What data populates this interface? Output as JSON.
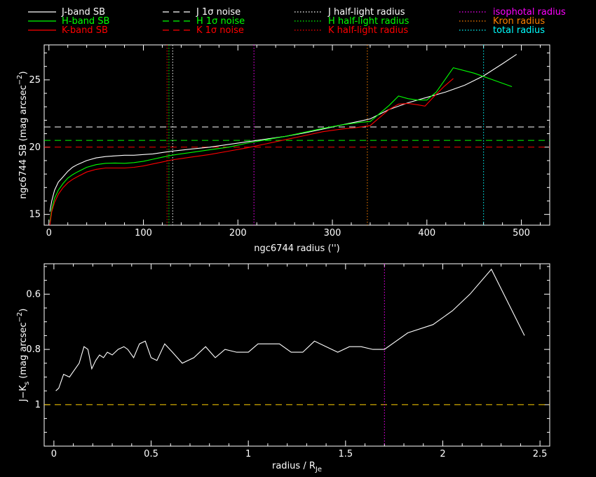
{
  "legend": [
    {
      "label": "J-band SB",
      "color": "#ffffff",
      "dash": "solid"
    },
    {
      "label": "H-band SB",
      "color": "#00ff00",
      "dash": "solid"
    },
    {
      "label": "K-band SB",
      "color": "#ff0000",
      "dash": "solid"
    },
    {
      "label": "J 1σ noise",
      "color": "#ffffff",
      "dash": "dashed"
    },
    {
      "label": "H 1σ noise",
      "color": "#00ff00",
      "dash": "dashed"
    },
    {
      "label": "K 1σ noise",
      "color": "#ff0000",
      "dash": "dashed"
    },
    {
      "label": "J half-light radius",
      "color": "#ffffff",
      "dash": "dotted"
    },
    {
      "label": "H half-light radius",
      "color": "#00ff00",
      "dash": "dotted"
    },
    {
      "label": "K half-light radius",
      "color": "#ff0000",
      "dash": "dotted"
    },
    {
      "label": "isophotal radius",
      "color": "#ff00ff",
      "dash": "dotted",
      "text_color": "#ff00ff"
    },
    {
      "label": "Kron radius",
      "color": "#ff8000",
      "dash": "dotted",
      "text_color": "#ff8000"
    },
    {
      "label": "total radius",
      "color": "#00ffff",
      "dash": "dotted",
      "text_color": "#00ffff"
    }
  ],
  "chart_data": [
    {
      "type": "line",
      "xlabel": "ngc6744 radius ('')",
      "ylabel": "ngc6744 SB (mag arcsec",
      "ylabel_sup": "−2",
      "ylabel_close": ")",
      "xlim": [
        -5,
        530
      ],
      "ylim": [
        27.6,
        14.2
      ],
      "xticks": [
        0,
        100,
        200,
        300,
        400,
        500
      ],
      "xticks_minor": [
        20,
        40,
        60,
        80,
        120,
        140,
        160,
        180,
        220,
        240,
        260,
        280,
        320,
        340,
        360,
        380,
        420,
        440,
        460,
        480,
        520
      ],
      "yticks": [
        15,
        20,
        25
      ],
      "yticks_minor": [
        16,
        17,
        18,
        19,
        21,
        22,
        23,
        24,
        26,
        27
      ],
      "series": [
        {
          "name": "J-band SB",
          "color": "#ffffff",
          "x": [
            1,
            3,
            6,
            10,
            15,
            20,
            25,
            30,
            40,
            50,
            60,
            70,
            80,
            90,
            100,
            110,
            120,
            130,
            150,
            170,
            190,
            210,
            230,
            250,
            270,
            290,
            310,
            330,
            340,
            350,
            360,
            380,
            400,
            420,
            440,
            460,
            480,
            495
          ],
          "y": [
            15.2,
            16.0,
            16.8,
            17.4,
            17.8,
            18.2,
            18.5,
            18.7,
            19.0,
            19.2,
            19.3,
            19.35,
            19.4,
            19.4,
            19.45,
            19.5,
            19.6,
            19.7,
            19.85,
            20.0,
            20.2,
            20.4,
            20.6,
            20.8,
            21.05,
            21.35,
            21.65,
            21.95,
            22.1,
            22.45,
            22.8,
            23.3,
            23.7,
            24.1,
            24.6,
            25.3,
            26.2,
            26.9
          ]
        },
        {
          "name": "H-band SB",
          "color": "#00ff00",
          "x": [
            1,
            3,
            6,
            10,
            15,
            20,
            25,
            30,
            40,
            50,
            60,
            70,
            80,
            90,
            100,
            110,
            120,
            130,
            150,
            170,
            190,
            210,
            230,
            250,
            270,
            290,
            310,
            330,
            340,
            350,
            360,
            370,
            380,
            390,
            400,
            410,
            428,
            450,
            470,
            490
          ],
          "y": [
            14.4,
            15.4,
            16.2,
            16.8,
            17.3,
            17.7,
            17.95,
            18.15,
            18.5,
            18.7,
            18.8,
            18.82,
            18.8,
            18.85,
            18.95,
            19.1,
            19.25,
            19.4,
            19.6,
            19.8,
            20.0,
            20.3,
            20.55,
            20.8,
            21.1,
            21.4,
            21.65,
            21.85,
            21.9,
            22.5,
            23.1,
            23.8,
            23.6,
            23.5,
            23.5,
            24.1,
            25.9,
            25.5,
            25.0,
            24.5
          ]
        },
        {
          "name": "K-band SB",
          "color": "#ff0000",
          "x": [
            1,
            3,
            6,
            10,
            15,
            20,
            25,
            30,
            40,
            50,
            60,
            70,
            80,
            90,
            100,
            110,
            120,
            130,
            150,
            170,
            190,
            210,
            230,
            250,
            270,
            290,
            310,
            325,
            340,
            350,
            360,
            370,
            380,
            390,
            398,
            408,
            418,
            428
          ],
          "y": [
            14.2,
            15.2,
            15.9,
            16.5,
            17.0,
            17.35,
            17.6,
            17.8,
            18.15,
            18.35,
            18.45,
            18.45,
            18.45,
            18.5,
            18.6,
            18.75,
            18.9,
            19.05,
            19.25,
            19.45,
            19.7,
            19.95,
            20.25,
            20.55,
            20.85,
            21.15,
            21.35,
            21.45,
            21.6,
            22.2,
            22.8,
            23.2,
            23.25,
            23.15,
            23.05,
            23.8,
            24.5,
            25.1
          ]
        }
      ],
      "noise_levels": [
        {
          "name": "J 1σ noise",
          "color": "#ffffff",
          "y": 21.5
        },
        {
          "name": "H 1σ noise",
          "color": "#00ff00",
          "y": 20.5
        },
        {
          "name": "K 1σ noise",
          "color": "#ff0000",
          "y": 20.0
        }
      ],
      "radii": [
        {
          "name": "J half-light radius",
          "color": "#ffffff",
          "x": 131
        },
        {
          "name": "H half-light radius",
          "color": "#00ff00",
          "x": 127
        },
        {
          "name": "K half-light radius",
          "color": "#ff0000",
          "x": 125
        },
        {
          "name": "isophotal radius",
          "color": "#ff00ff",
          "x": 217
        },
        {
          "name": "Kron radius",
          "color": "#ff8000",
          "x": 337
        },
        {
          "name": "total radius",
          "color": "#00ffff",
          "x": 460
        }
      ]
    },
    {
      "type": "line",
      "xlabel": "radius / R",
      "xlabel_sub": "Je",
      "ylabel": "J−K",
      "ylabel_sub": "s",
      "ylabel_rest": " (mag arcsec",
      "ylabel_sup": "−2",
      "ylabel_close": ")",
      "xlim": [
        -0.05,
        2.55
      ],
      "ylim": [
        0.49,
        1.15
      ],
      "xticks": [
        0,
        0.5,
        1,
        1.5,
        2,
        2.5
      ],
      "xticks_minor": [
        0.1,
        0.2,
        0.3,
        0.4,
        0.6,
        0.7,
        0.8,
        0.9,
        1.1,
        1.2,
        1.3,
        1.4,
        1.6,
        1.7,
        1.8,
        1.9,
        2.1,
        2.2,
        2.3,
        2.4
      ],
      "yticks": [
        0.6,
        0.8,
        1
      ],
      "yticks_minor": [
        0.5,
        0.55,
        0.65,
        0.7,
        0.75,
        0.85,
        0.9,
        0.95,
        1.05,
        1.1
      ],
      "series": [
        {
          "name": "J−Ks",
          "color": "#ffffff",
          "x": [
            0.01,
            0.025,
            0.05,
            0.08,
            0.1,
            0.13,
            0.155,
            0.175,
            0.195,
            0.215,
            0.235,
            0.255,
            0.275,
            0.3,
            0.33,
            0.36,
            0.38,
            0.41,
            0.44,
            0.47,
            0.5,
            0.53,
            0.57,
            0.61,
            0.66,
            0.72,
            0.78,
            0.83,
            0.88,
            0.94,
            1.0,
            1.05,
            1.1,
            1.16,
            1.22,
            1.28,
            1.34,
            1.4,
            1.46,
            1.52,
            1.58,
            1.64,
            1.7,
            1.82,
            1.95,
            2.05,
            2.14,
            2.25,
            2.42
          ],
          "y": [
            0.95,
            0.94,
            0.89,
            0.9,
            0.88,
            0.85,
            0.79,
            0.8,
            0.87,
            0.84,
            0.82,
            0.83,
            0.81,
            0.82,
            0.8,
            0.79,
            0.8,
            0.83,
            0.78,
            0.77,
            0.83,
            0.84,
            0.78,
            0.81,
            0.85,
            0.83,
            0.79,
            0.83,
            0.8,
            0.81,
            0.81,
            0.78,
            0.78,
            0.78,
            0.81,
            0.81,
            0.77,
            0.79,
            0.81,
            0.79,
            0.79,
            0.8,
            0.8,
            0.74,
            0.71,
            0.66,
            0.6,
            0.51,
            0.75
          ]
        }
      ],
      "reference_line": {
        "color": "#ffd000",
        "y": 1.0
      },
      "radii": [
        {
          "name": "isophotal radius",
          "color": "#ff00ff",
          "x": 1.7
        }
      ]
    }
  ]
}
